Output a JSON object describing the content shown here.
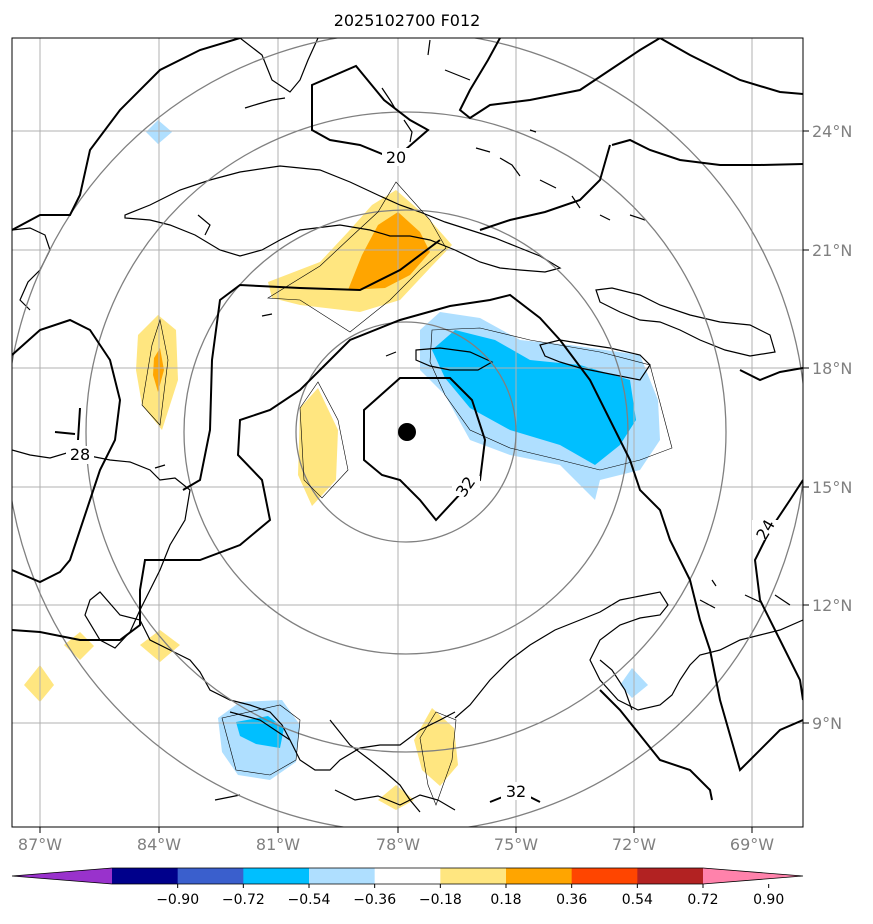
{
  "title": "2025102700 F012",
  "lon_ticks": [
    "87°W",
    "84°W",
    "81°W",
    "78°W",
    "75°W",
    "72°W",
    "69°W"
  ],
  "lat_ticks": [
    "24°N",
    "21°N",
    "18°N",
    "15°N",
    "12°N",
    "9°N"
  ],
  "contour_labels": [
    "20",
    "28",
    "32",
    "24",
    "32"
  ],
  "colorbar": {
    "ticks": [
      "−0.90",
      "−0.72",
      "−0.54",
      "−0.36",
      "−0.18",
      "0.18",
      "0.36",
      "0.54",
      "0.72",
      "0.90"
    ],
    "colors": [
      "#9932cc",
      "#00008b",
      "#3a5fcd",
      "#00bfff",
      "#afdfff",
      "#ffffff",
      "#ffe680",
      "#ffa500",
      "#ff4500",
      "#b22222",
      "#ff82ab"
    ]
  },
  "colors": {
    "grid": "#b0b0b0",
    "range_rings": "#808080",
    "coastline": "#000000"
  }
}
